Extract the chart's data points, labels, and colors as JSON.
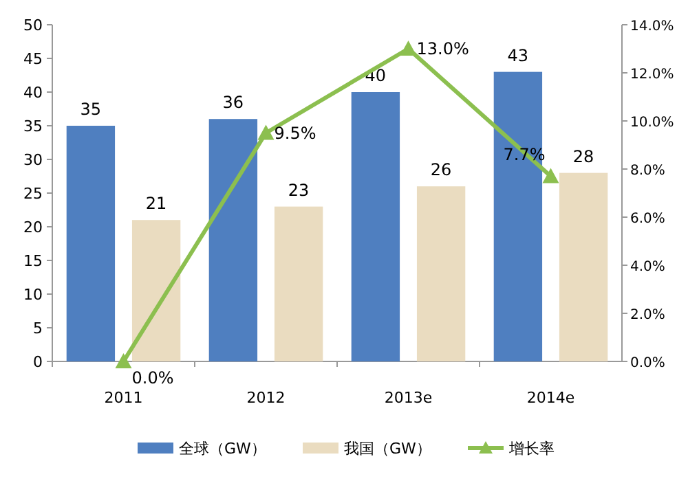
{
  "chart_data": {
    "type": "bar",
    "categories": [
      "2011",
      "2012",
      "2013e",
      "2014e"
    ],
    "series": [
      {
        "name": "全球（GW）",
        "color": "#4f7fc0",
        "values": [
          35,
          36,
          40,
          43
        ],
        "value_labels": [
          "35",
          "36",
          "40",
          "43"
        ]
      },
      {
        "name": "我国（GW）",
        "color": "#eadcc0",
        "values": [
          21,
          23,
          26,
          28
        ],
        "value_labels": [
          "21",
          "23",
          "26",
          "28"
        ]
      },
      {
        "name": "增长率",
        "type": "line",
        "axis": "y2",
        "color": "#8cbf4f",
        "marker": "triangle",
        "values": [
          0.0,
          9.5,
          13.0,
          7.7
        ],
        "value_labels": [
          "0.0%",
          "9.5%",
          "13.0%",
          "7.7%"
        ]
      }
    ],
    "ylim": [
      0,
      50
    ],
    "yticks": [
      0,
      5,
      10,
      15,
      20,
      25,
      30,
      35,
      40,
      45,
      50
    ],
    "y2lim": [
      0,
      14
    ],
    "y2ticks": [
      {
        "value": 0,
        "label": "0.0%"
      },
      {
        "value": 2,
        "label": "2.0%"
      },
      {
        "value": 4,
        "label": "4.0%"
      },
      {
        "value": 6,
        "label": "6.0%"
      },
      {
        "value": 8,
        "label": "8.0%"
      },
      {
        "value": 10,
        "label": "10.0%"
      },
      {
        "value": 12,
        "label": "12.0%"
      },
      {
        "value": 14,
        "label": "14.0%"
      }
    ],
    "grid": false,
    "legend": "bottom"
  }
}
